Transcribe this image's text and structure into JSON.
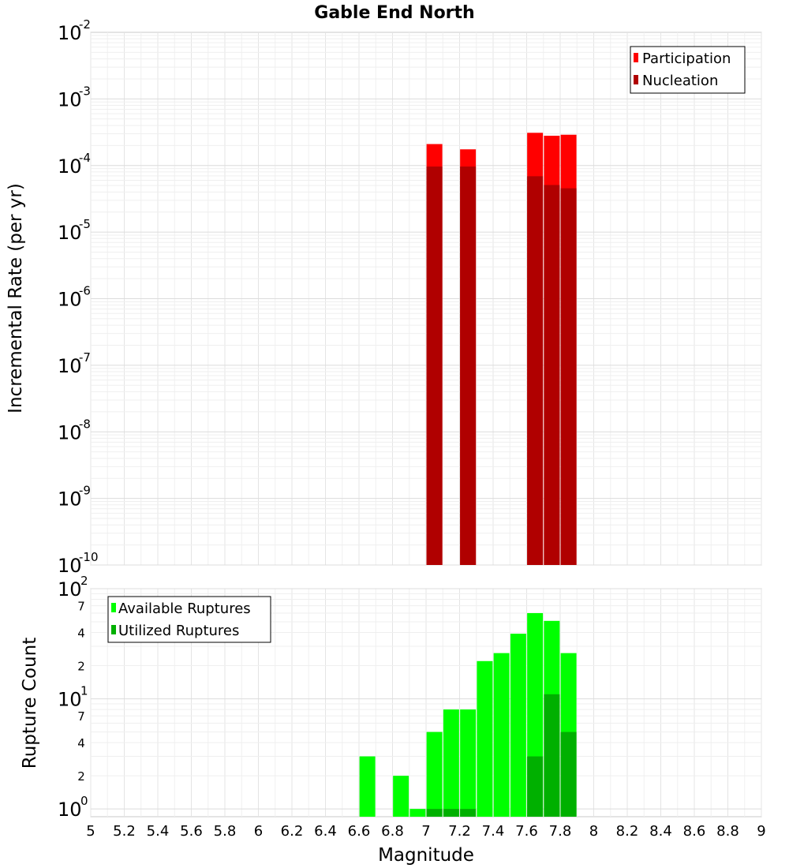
{
  "chart_data": [
    {
      "type": "bar",
      "title": "Gable End North",
      "xlabel": "Magnitude",
      "ylabel": "Incremental Rate (per yr)",
      "yscale": "log",
      "xlim": [
        5,
        9
      ],
      "ylim": [
        1e-10,
        0.01
      ],
      "x_ticks": [
        "5",
        "5.2",
        "5.4",
        "5.6",
        "5.8",
        "6",
        "6.2",
        "6.4",
        "6.6",
        "6.8",
        "7",
        "7.2",
        "7.4",
        "7.6",
        "7.8",
        "8",
        "8.2",
        "8.4",
        "8.6",
        "8.8",
        "9"
      ],
      "y_tick_base": "10",
      "y_tick_exponents": [
        "-10",
        "-9",
        "-8",
        "-7",
        "-6",
        "-5",
        "-4",
        "-3",
        "-2"
      ],
      "legend": [
        "Participation",
        "Nucleation"
      ],
      "legend_position": "top-right",
      "x": [
        7.05,
        7.25,
        7.65,
        7.75,
        7.85
      ],
      "series": [
        {
          "name": "Participation",
          "color": "#ff0000",
          "values": [
            0.00021,
            0.000175,
            0.00031,
            0.00028,
            0.00029
          ]
        },
        {
          "name": "Nucleation",
          "color": "#b00000",
          "values": [
            9.65e-05,
            9.65e-05,
            6.9e-05,
            5.1e-05,
            4.55e-05
          ]
        }
      ]
    },
    {
      "type": "bar",
      "ylabel": "Rupture Count",
      "yscale": "log",
      "xlim": [
        5,
        9
      ],
      "ylim": [
        0.85,
        100
      ],
      "y_tick_base": "10",
      "y_major_exponents": [
        "0",
        "1",
        "2"
      ],
      "y_minor_labels": [
        "2",
        "4",
        "7",
        "2",
        "4",
        "7"
      ],
      "legend": [
        "Available Ruptures",
        "Utilized Ruptures"
      ],
      "legend_position": "top-left",
      "x": [
        6.65,
        6.85,
        6.95,
        7.05,
        7.15,
        7.25,
        7.35,
        7.45,
        7.55,
        7.65,
        7.75,
        7.85
      ],
      "series": [
        {
          "name": "Available Ruptures",
          "color": "#00ff00",
          "values": [
            3,
            2,
            1,
            5,
            8,
            8,
            22,
            26,
            39,
            60,
            51,
            26
          ]
        },
        {
          "name": "Utilized Ruptures",
          "color": "#00b000",
          "values": [
            0,
            0,
            0,
            1,
            1,
            1,
            0,
            0,
            0,
            3,
            11,
            5
          ]
        }
      ]
    }
  ]
}
